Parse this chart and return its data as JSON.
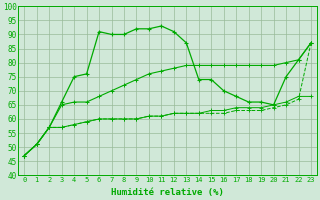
{
  "x_ticks": [
    0,
    1,
    2,
    3,
    4,
    5,
    6,
    7,
    8,
    9,
    10,
    11,
    12,
    13,
    14,
    15,
    16,
    17,
    18,
    19,
    20,
    21,
    22,
    23
  ],
  "line1_y": [
    47,
    51,
    57,
    66,
    75,
    76,
    91,
    90,
    90,
    92,
    92,
    93,
    91,
    87,
    74,
    74,
    70,
    68,
    66,
    66,
    65,
    75,
    81,
    87
  ],
  "line2_y": [
    47,
    51,
    57,
    65,
    66,
    66,
    68,
    70,
    72,
    74,
    76,
    77,
    78,
    79,
    79,
    79,
    79,
    79,
    79,
    79,
    79,
    80,
    81,
    87
  ],
  "line3_y": [
    47,
    51,
    57,
    57,
    58,
    59,
    60,
    60,
    60,
    60,
    61,
    61,
    62,
    62,
    62,
    63,
    63,
    64,
    64,
    64,
    65,
    66,
    68,
    68
  ],
  "line4_y": [
    47,
    51,
    57,
    57,
    58,
    59,
    60,
    60,
    60,
    60,
    61,
    61,
    62,
    62,
    62,
    62,
    62,
    63,
    63,
    63,
    64,
    65,
    67,
    87
  ],
  "color": "#00aa00",
  "bg_color": "#d0e8d8",
  "grid_color": "#99bb99",
  "xlabel": "Humidité relative (%)",
  "ylim": [
    40,
    100
  ],
  "xlim_min": -0.5,
  "xlim_max": 23.5,
  "y_ticks": [
    40,
    45,
    50,
    55,
    60,
    65,
    70,
    75,
    80,
    85,
    90,
    95,
    100
  ]
}
